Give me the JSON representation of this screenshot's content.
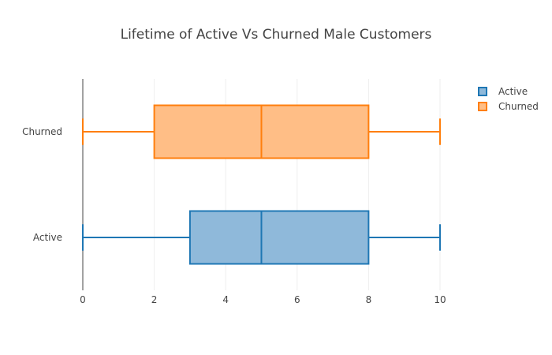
{
  "chart_data": {
    "type": "box",
    "orientation": "horizontal",
    "title": "Lifetime of Active Vs Churned Male Customers",
    "xlabel": "",
    "ylabel": "",
    "xlim": [
      0,
      10
    ],
    "x_ticks": [
      0,
      2,
      4,
      6,
      8,
      10
    ],
    "categories": [
      "Active",
      "Churned"
    ],
    "grid": "vertical",
    "legend_position": "top-right",
    "series": [
      {
        "name": "Active",
        "color": "#1f77b4",
        "fill": "#8fb9da",
        "min": 0,
        "q1": 3,
        "median": 5,
        "q3": 8,
        "max": 10
      },
      {
        "name": "Churned",
        "color": "#ff7f0e",
        "fill": "#ffbe86",
        "min": 0,
        "q1": 2,
        "median": 5,
        "q3": 8,
        "max": 10
      }
    ]
  }
}
